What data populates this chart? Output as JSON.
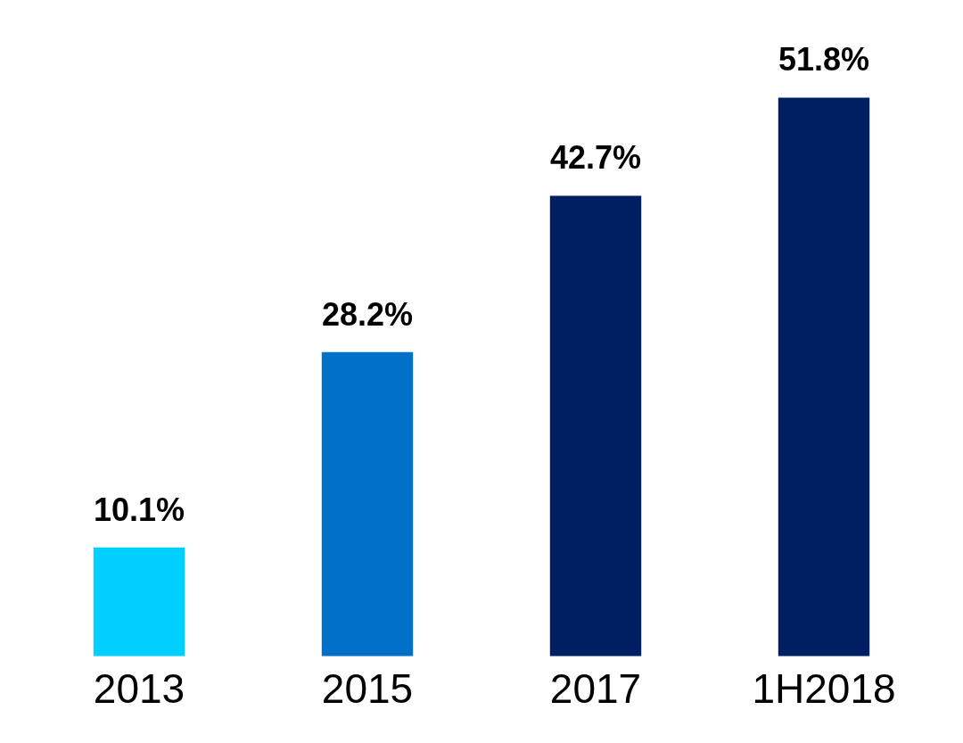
{
  "chart_data": {
    "type": "bar",
    "categories": [
      "2013",
      "2015",
      "2017",
      "1H2018"
    ],
    "values": [
      10.1,
      28.2,
      42.7,
      51.8
    ],
    "colors": [
      "#00cfff",
      "#0070c8",
      "#001e62",
      "#001e62"
    ],
    "value_labels": [
      "10.1%",
      "28.2%",
      "42.7%",
      "51.8%"
    ],
    "grid": false,
    "legend": false
  }
}
